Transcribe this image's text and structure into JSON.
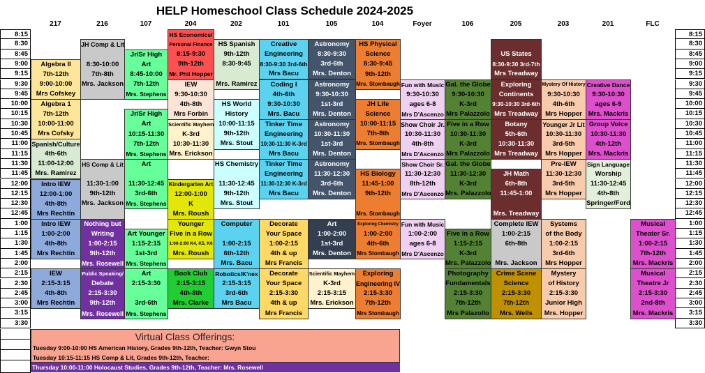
{
  "title": "HELP Homeschool Class Schedule 2024-2025",
  "times": [
    "8:15",
    "8:30",
    "8:45",
    "9:00",
    "9:15",
    "9:30",
    "9:45",
    "10:00",
    "10:15",
    "10:30",
    "10:45",
    "11:00",
    "11:15",
    "11:30",
    "11:45",
    "12:00",
    "12:15",
    "12:30",
    "12:45",
    "1:00",
    "1:15",
    "1:30",
    "1:45",
    "2:00",
    "2:15",
    "2:30",
    "2:45",
    "3:00",
    "3:15",
    "3:30"
  ],
  "columns": [
    {
      "room": "217",
      "blocks": [
        {
          "start": "9:00",
          "color": "#fde599",
          "lines": [
            "Algebra II",
            "7th-12th",
            "9:00-10:00",
            "Mrs Cofskey"
          ]
        },
        {
          "start": "10:00",
          "color": "#fde599",
          "lines": [
            "Algebra 1",
            "7th-12th",
            "10:00-11:00",
            "Mrs Cofsky"
          ]
        },
        {
          "start": "11:00",
          "color": "#d9ead3",
          "lines": [
            "Spanish/Culture",
            "4th-6th",
            "11:00-12:00",
            "Mrs. Ramirez"
          ]
        },
        {
          "start": "12:00",
          "color": "#8eaadb",
          "lines": [
            "Intro IEW",
            "12:00-1:00",
            "4th-8th",
            "Mrs Rechtin"
          ]
        },
        {
          "start": "1:00",
          "color": "#8eaadb",
          "lines": [
            "Intro IEW",
            "1:00-2:00",
            "4th-8th",
            "Mrs Rechtin"
          ]
        },
        {
          "start": "2:15",
          "color": "#8eaadb",
          "lines": [
            "IEW",
            "2:15-3:15",
            "4th-8th",
            "Mrs Rechtin"
          ]
        }
      ]
    },
    {
      "room": "216",
      "blocks": [
        {
          "start": "8:30",
          "color": "#c9c9c9",
          "lines": [
            "JH Comp & Lit",
            "",
            "8:30-10:00",
            "7th-8th",
            "Mrs. Jackson",
            ""
          ]
        },
        {
          "start": "11:30",
          "color": "#c9c9c9",
          "lines": [
            "HS Comp & Lit",
            "",
            "11:30-1:00",
            "9th-12th",
            "Mrs. Jackson",
            ""
          ]
        },
        {
          "start": "1:00",
          "color": "#7030a0",
          "text": "#ffffff",
          "lines": [
            "Nothing but",
            "Writing",
            "1:00-2:15",
            "9th-12th",
            "Mrs. Rosewell"
          ]
        },
        {
          "start": "2:15",
          "color": "#7030a0",
          "text": "#ffffff",
          "lines": [
            "Public Speaking/",
            "Debate",
            "2:15-3:30",
            "9th-12th",
            "Mrs. Rosewell"
          ]
        }
      ]
    },
    {
      "room": "107",
      "blocks": [
        {
          "start": "8:45",
          "color": "#66ff99",
          "lines": [
            "Jr/Sr High",
            "Art",
            "8:45-10:00",
            "7th-12th",
            "Mrs. Stephens"
          ]
        },
        {
          "start": "10:15",
          "color": "#66ff99",
          "lines": [
            "Jr/Sr High",
            "Art",
            "10:15-11:30",
            "7th-12th",
            "Mrs. Stephens"
          ]
        },
        {
          "start": "11:30",
          "color": "#66ff99",
          "lines": [
            "Art",
            "",
            "11:30-12:45",
            "3rd-6th",
            "Mrs. Stephens"
          ]
        },
        {
          "start": "1:15",
          "color": "#66ff99",
          "lines": [
            "Art Younger",
            "1:15-2:15",
            "1st-3rd",
            "Mrs. Stephens"
          ]
        },
        {
          "start": "2:15",
          "color": "#66ff99",
          "lines": [
            "Art",
            "2:15-3:30",
            "",
            "3rd-6th",
            "Mrs. Stephens"
          ]
        }
      ]
    },
    {
      "room": "204",
      "blocks": [
        {
          "start": "8:15",
          "color": "#ff5050",
          "lines": [
            "HS Economics/",
            "Personal Finance",
            "8:15-9:30",
            "9th-12th",
            "Mr. Phil Hopper"
          ]
        },
        {
          "start": "9:30",
          "color": "#fce4d6",
          "lines": [
            "IEW",
            "9:30-10:30",
            "4th-8th",
            "Mrs Forbin"
          ]
        },
        {
          "start": "10:30",
          "color": "#fff2cc",
          "lines": [
            "Scientific Mayhem",
            "K-3rd",
            "10:30-11:30",
            "Mrs. Erickson"
          ]
        },
        {
          "start": "12:00",
          "color": "#e2e60a",
          "lines": [
            "Kindergarten Art",
            "12:00-1:00",
            "K",
            "Mrs. Roush"
          ]
        },
        {
          "start": "1:00",
          "color": "#e2e60a",
          "lines": [
            "Younger",
            "Five in a Row",
            "1:00-2:00 K4, K5, K6",
            "Mrs. Roush"
          ]
        },
        {
          "start": "2:15",
          "color": "#22cc33",
          "lines": [
            "Book Club",
            "2:15-3:15",
            "4th-8th",
            "Mrs. Clarke"
          ]
        }
      ]
    },
    {
      "room": "202",
      "blocks": [
        {
          "start": "8:30",
          "color": "#d9ead3",
          "lines": [
            "HS Spanish",
            "9th-12th",
            "8:30-9:45",
            "",
            "Mrs. Ramirez"
          ]
        },
        {
          "start": "10:00",
          "color": "#ccffff",
          "lines": [
            "HS World",
            "History",
            "10:00-11:15",
            "9th-12th",
            "Mrs. Stout"
          ]
        },
        {
          "start": "11:30",
          "color": "#ccffff",
          "lines": [
            "HS Chemistry",
            "",
            "11:30-12:45",
            "9th-12th",
            "Mrs. Stout"
          ]
        },
        {
          "start": "1:00",
          "color": "#5bd3f0",
          "lines": [
            "Computer",
            "",
            "1:00-2:15",
            "6th-12th",
            "Mrs. Bacu"
          ]
        },
        {
          "start": "2:15",
          "color": "#5bd3f0",
          "lines": [
            "Robotics/K'nex",
            "2:15-3:15",
            "3rd-6th",
            "Mrs Bacu"
          ]
        }
      ]
    },
    {
      "room": "101",
      "blocks": [
        {
          "start": "8:30",
          "color": "#5bd3f0",
          "lines": [
            "Creative",
            "Engineering",
            "8:30-9:30 3rd-6th",
            "Mrs Bacu"
          ]
        },
        {
          "start": "9:30",
          "color": "#5bd3f0",
          "lines": [
            "Coding I",
            "4th-6th",
            "9:30-10:30",
            "Mrs. Bacu"
          ]
        },
        {
          "start": "10:30",
          "color": "#5bd3f0",
          "lines": [
            "Tinker Time",
            "Engineering",
            "10:30-11:30 K-3rd",
            "Mrs Bacu"
          ]
        },
        {
          "start": "11:30",
          "color": "#5bd3f0",
          "lines": [
            "Tinker Time",
            "Engineering",
            "11:30-12:30 K-3rd",
            "Mrs Bacu"
          ]
        },
        {
          "start": "1:00",
          "color": "#ffd966",
          "lines": [
            "Decorate",
            "Your Space",
            "1:00-2:15",
            "4th & up",
            "Mrs Francis"
          ]
        },
        {
          "start": "2:15",
          "color": "#ffd966",
          "lines": [
            "Decorate",
            "Your Space",
            "2:15-3:30",
            "4th & up",
            "Mrs Francis"
          ]
        }
      ]
    },
    {
      "room": "105",
      "blocks": [
        {
          "start": "8:30",
          "color": "#44546a",
          "text": "#ffffff",
          "lines": [
            "Astronomy",
            "8:30-9:30",
            "3rd-6th",
            "Mrs. Denton"
          ]
        },
        {
          "start": "9:30",
          "color": "#44546a",
          "text": "#ffffff",
          "lines": [
            "Astronomy",
            "9:30-10:30",
            "1st-3rd",
            "Mrs. Denton"
          ]
        },
        {
          "start": "10:30",
          "color": "#44546a",
          "text": "#ffffff",
          "lines": [
            "Astronomy",
            "10:30-11:30",
            "1st-3rd",
            "Mrs. Denton"
          ]
        },
        {
          "start": "11:30",
          "color": "#44546a",
          "text": "#ffffff",
          "lines": [
            "Astronomy",
            "11:30-12:30",
            "3rd-6th",
            "Mrs. Denton"
          ]
        },
        {
          "start": "1:00",
          "color": "#333f50",
          "text": "#ffffff",
          "lines": [
            "Art",
            "1:00-2:00",
            "1st-3rd",
            "Mrs. Denton"
          ]
        },
        {
          "start": "2:15",
          "color": "#fff2cc",
          "lines": [
            "Scientific Mayhem",
            "K-3rd",
            "2:15-3:15",
            "Mrs. Erickson"
          ]
        }
      ]
    },
    {
      "room": "104",
      "blocks": [
        {
          "start": "8:30",
          "color": "#ed7d31",
          "lines": [
            "HS Physical",
            "Science",
            "8:30-9:45",
            "9th-12th",
            "Mrs. Stombaugh"
          ]
        },
        {
          "start": "10:00",
          "color": "#ed7d31",
          "lines": [
            "JH Life",
            "Science",
            "10:00-11:15",
            "7th-8th",
            "Mrs. Stombaugh"
          ]
        },
        {
          "start": "11:45",
          "color": "#ed7d31",
          "lines": [
            "HS Biology",
            "11:45-1:00",
            "9th-12th",
            "",
            "Mrs. Stombaugh"
          ]
        },
        {
          "start": "1:00",
          "color": "#ed7d31",
          "lines": [
            "Exploring Chemistry",
            "1:00-2:00",
            "4th-6th",
            "Mrs Stombaugh"
          ]
        },
        {
          "start": "2:15",
          "color": "#ed7d31",
          "lines": [
            "Exploring",
            "Engineering IV",
            "2:15-3:30",
            "7th-12th",
            "Mrs Stombaugh"
          ]
        }
      ]
    },
    {
      "room": "Foyer",
      "blocks": [
        {
          "start": "9:30",
          "color": "#efd0f0",
          "lines": [
            "Fun with Music",
            "9:30-10:30",
            "ages 6-8",
            "Mrs D'Ascenzo"
          ]
        },
        {
          "start": "10:30",
          "color": "#efd0f0",
          "lines": [
            "Show Choir Jr.",
            "10:30-11:30",
            "4th-8th",
            "Mrs D'Ascenzo"
          ]
        },
        {
          "start": "11:30",
          "color": "#efd0f0",
          "lines": [
            "Show Choir Sr.",
            "11:30-12:30",
            "8th-12th",
            "Mrs D'Ascenzo"
          ]
        },
        {
          "start": "1:00",
          "color": "#efd0f0",
          "lines": [
            "Fun with Music",
            "1:00-2:00",
            "ages 6-8",
            "Mrs D'Ascenzo"
          ]
        }
      ]
    },
    {
      "room": "106",
      "blocks": [
        {
          "start": "9:30",
          "color": "#548235",
          "lines": [
            "Gal. the Globe",
            "9:30-10:30",
            "K-3rd",
            "Mrs Palazzolo"
          ]
        },
        {
          "start": "10:30",
          "color": "#548235",
          "lines": [
            "Five in a Row",
            "10:30-11:30",
            "K-3rd",
            "Mrs Palazzolo"
          ]
        },
        {
          "start": "11:30",
          "color": "#548235",
          "lines": [
            "Gal. the Globe",
            "11:30-12:30",
            "K-3rd",
            "Mrs. Palazzolo"
          ]
        },
        {
          "start": "1:15",
          "color": "#548235",
          "lines": [
            "Five in a Row",
            "1:15-2:15",
            "K-3rd",
            "Mrs. Palazzolo"
          ]
        },
        {
          "start": "2:15",
          "color": "#548235",
          "lines": [
            "Photography",
            "Fundamentals",
            "2:15-3:30",
            "7th-12th",
            "Mrs Palazollo"
          ]
        }
      ]
    },
    {
      "room": "205",
      "blocks": [
        {
          "start": "8:30",
          "color": "#6b2d2d",
          "text": "#ffffff",
          "lines": [
            "",
            "US States",
            "8:30-9:30 3rd-7th",
            "Mrs Treadway"
          ]
        },
        {
          "start": "9:30",
          "color": "#6b2d2d",
          "text": "#ffffff",
          "lines": [
            "Exploring",
            "Continents",
            "9:30-10:30 3rd-6th",
            "Mrs Treadway"
          ]
        },
        {
          "start": "10:30",
          "color": "#6b2d2d",
          "text": "#ffffff",
          "lines": [
            "Botany",
            "5th-6th",
            "10:30-11:30",
            "Mrs Treadway"
          ]
        },
        {
          "start": "11:45",
          "color": "#6b2d2d",
          "text": "#ffffff",
          "lines": [
            "JH Math",
            "6th-8th",
            "11:45-1:00",
            "",
            "Mrs. Treadway"
          ]
        },
        {
          "start": "1:00",
          "color": "#c9c9c9",
          "lines": [
            "Complete IEW",
            "1:00-2:15",
            "6th-8th",
            "",
            "Mrs. Jackson"
          ]
        },
        {
          "start": "2:15",
          "color": "#bf9000",
          "lines": [
            "Crime Scene",
            "Science",
            "2:15-3:30",
            "7th-12th",
            "Mrs. Wells"
          ]
        }
      ]
    },
    {
      "room": "203",
      "blocks": [
        {
          "start": "9:30",
          "color": "#f8cbad",
          "lines": [
            "Mystery Of History",
            "9:30-10:30",
            "4th-6th",
            "Mrs Hopper"
          ]
        },
        {
          "start": "10:30",
          "color": "#f8cbad",
          "lines": [
            "Younger Jr Lit",
            "10:30-11:30",
            "3rd-5th",
            "Mrs Hopper"
          ]
        },
        {
          "start": "11:30",
          "color": "#f8cbad",
          "lines": [
            "Pre-IEW",
            "11:30-12:30",
            "3rd-5th",
            "Mrs Hopper"
          ]
        },
        {
          "start": "1:00",
          "color": "#f8cbad",
          "lines": [
            "Systems",
            "of the Body",
            "1:00-2:15",
            "3rd-6th",
            "Mrs Hopper"
          ]
        },
        {
          "start": "2:15",
          "color": "#f8cbad",
          "lines": [
            "Mystery",
            "of History",
            "2:15-3:30",
            "Junior High",
            "Mrs. Hopper"
          ]
        }
      ]
    },
    {
      "room": "201",
      "blocks": [
        {
          "start": "9:30",
          "color": "#dd4fcc",
          "lines": [
            "Creative Dance",
            "9:30-10:30",
            "ages 6-9",
            "Mrs. Mackris"
          ]
        },
        {
          "start": "10:30",
          "color": "#dd4fcc",
          "lines": [
            "Group Voice",
            "10:30-11:30",
            "4th-12th",
            "Mrs. Mackris"
          ]
        },
        {
          "start": "11:30",
          "color": "#e2efda",
          "lines": [
            "Sign Language",
            "Worship",
            "11:30-12:45",
            "4th-8th",
            "Springer/Ford"
          ]
        }
      ]
    },
    {
      "room": "FLC",
      "blocks": [
        {
          "start": "1:00",
          "color": "#dd4fcc",
          "lines": [
            "Musical",
            "Theater Sr.",
            "1:00-2:15",
            "7th-12th",
            "Mrs. Mackris"
          ]
        },
        {
          "start": "2:15",
          "color": "#dd4fcc",
          "lines": [
            "Musical",
            "Theatre Jr",
            "2:15-3:30",
            "2nd-8th",
            "Mrs. Mackris"
          ]
        }
      ]
    }
  ],
  "virtual": {
    "heading": "Virtual Class Offerings:",
    "lines": [
      "Tuesday 9:00-10:00 HS American History, Grades 9th-12th, Teacher: Gwyn Stou",
      "Tuesday 10:15-11:15 HS Comp & Lit, Grades 9th-12th, Teacher:",
      "Thursday 10:00-11:00 Holocaust Studies, Grades 9th-12th, Teacher: Mrs. Rosewell"
    ]
  }
}
